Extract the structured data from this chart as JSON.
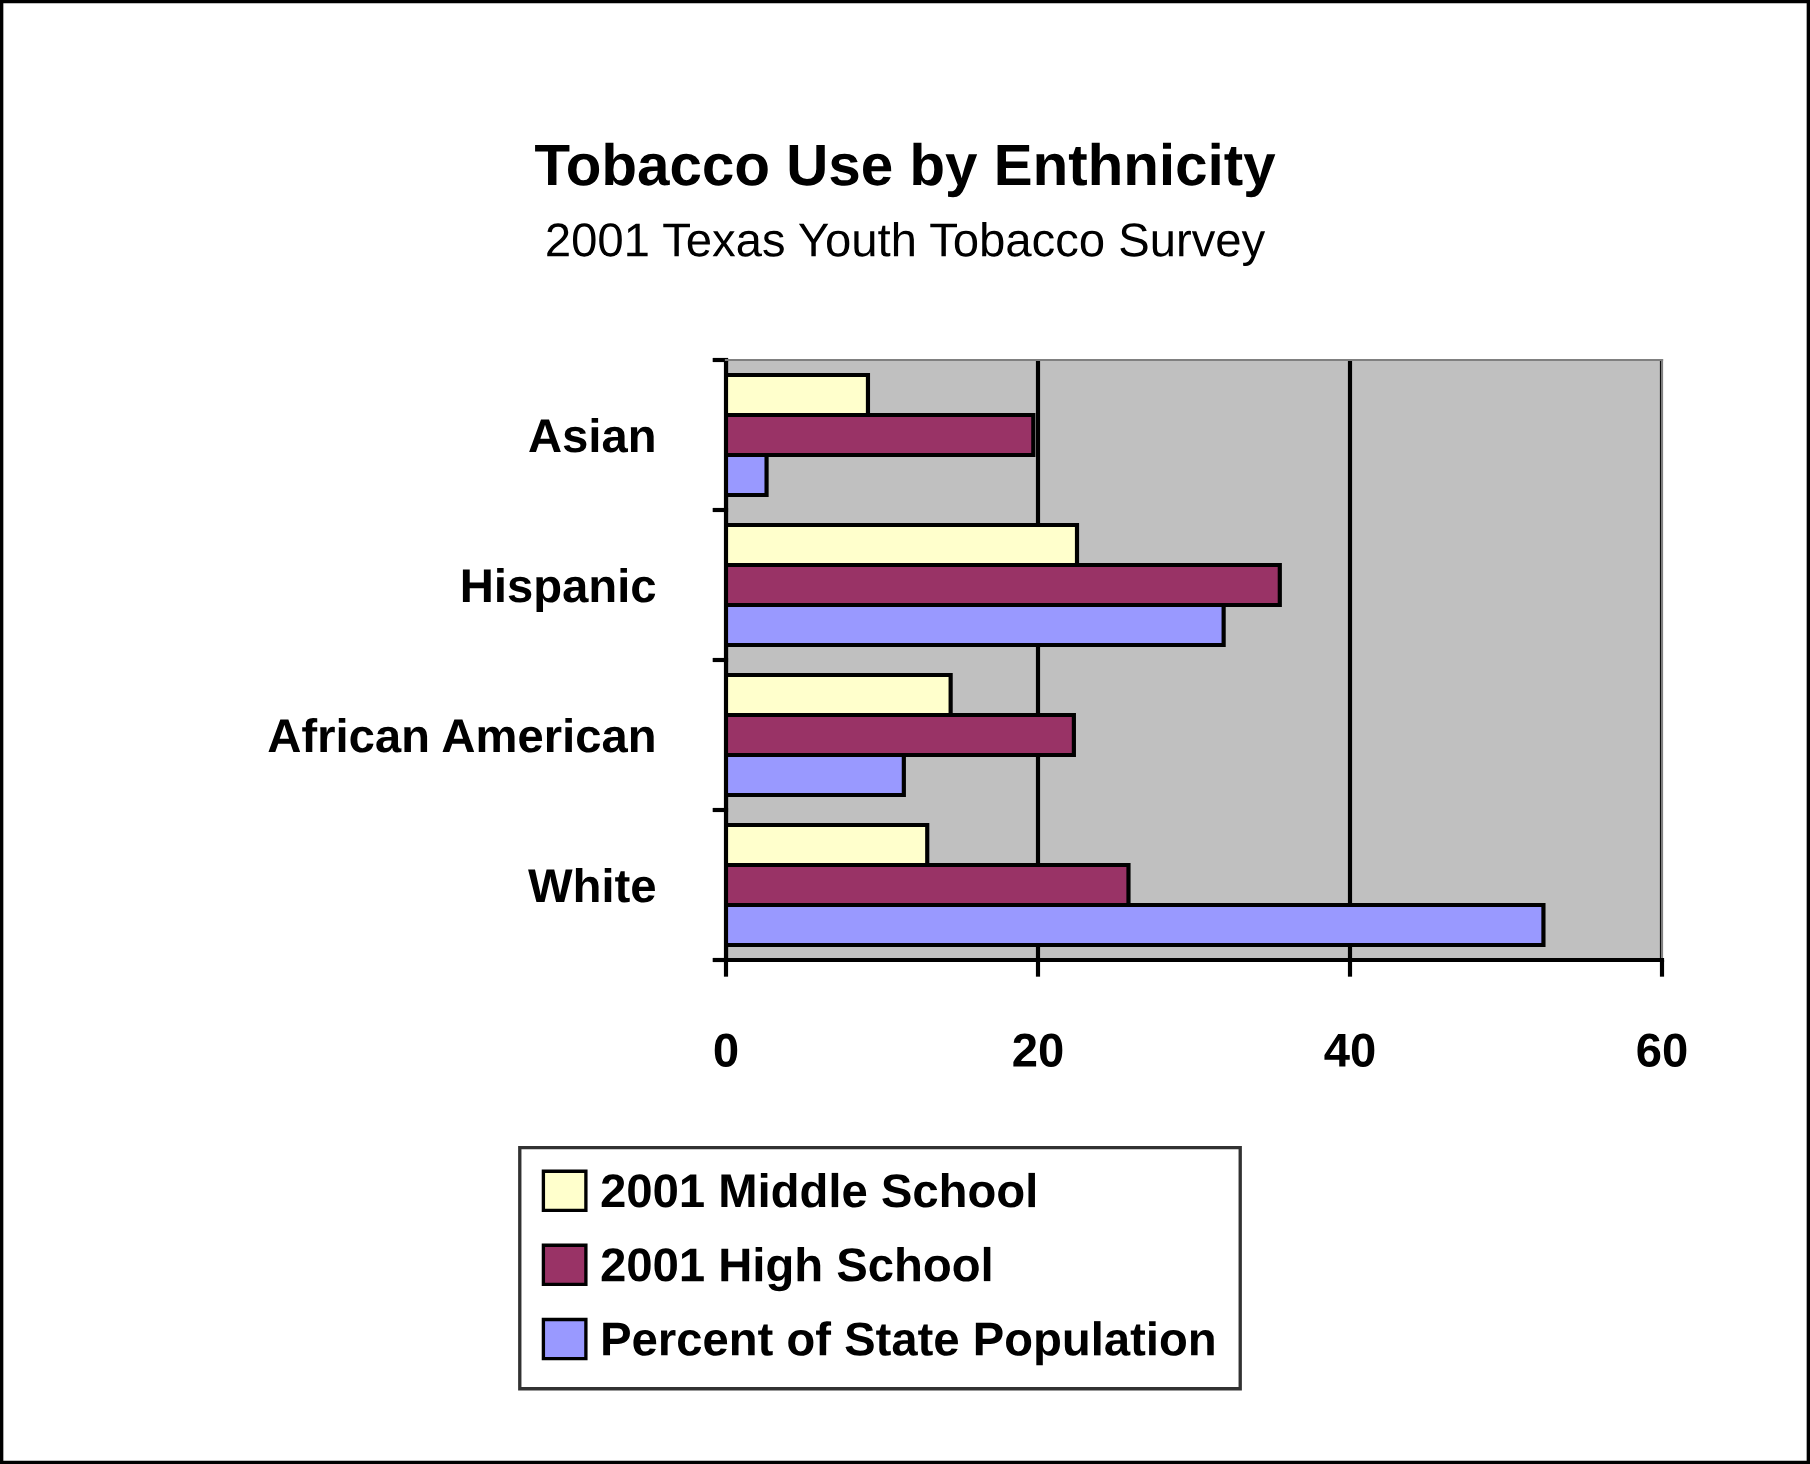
{
  "chart_data": {
    "type": "bar",
    "orientation": "horizontal",
    "title": "Tobacco Use by Enthnicity",
    "subtitle": "2001 Texas Youth Tobacco Survey",
    "categories": [
      "Asian",
      "Hispanic",
      "African American",
      "White"
    ],
    "series": [
      {
        "name": "2001 Middle School",
        "color": "#ffffcc",
        "values": [
          9.1,
          22.5,
          14.4,
          12.9
        ]
      },
      {
        "name": "2001 High School",
        "color": "#993366",
        "values": [
          19.7,
          35.5,
          22.3,
          25.8
        ]
      },
      {
        "name": "Percent of State Population",
        "color": "#9999ff",
        "values": [
          2.6,
          31.9,
          11.4,
          52.4
        ]
      }
    ],
    "xlim": [
      0,
      60
    ],
    "xticks": [
      0,
      20,
      40,
      60
    ],
    "grid": "x",
    "legend": "bottom"
  }
}
